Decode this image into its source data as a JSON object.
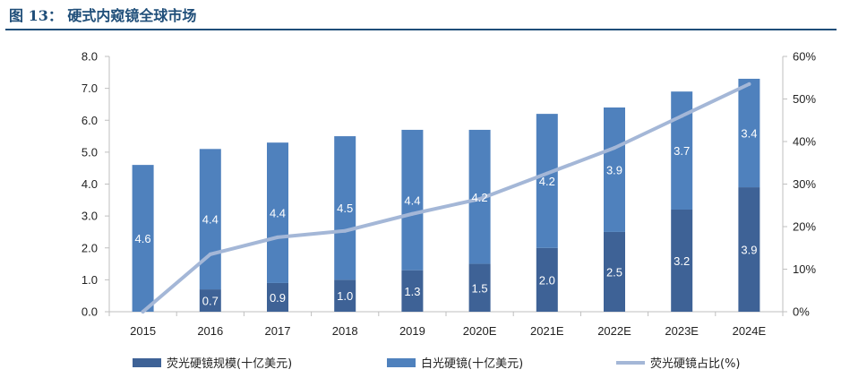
{
  "figure": {
    "title": "图 13：  硬式内窥镜全球市场"
  },
  "colors": {
    "fluorescence": "#3e6296",
    "white_light": "#4f81bd",
    "share_line": "#a4b7d7",
    "title": "#1f4e79"
  },
  "chart_data": {
    "type": "bar",
    "stacked": true,
    "categories": [
      "2015",
      "2016",
      "2017",
      "2018",
      "2019",
      "2020E",
      "2021E",
      "2022E",
      "2023E",
      "2024E"
    ],
    "series": [
      {
        "name": "荧光硬镜规模(十亿美元)",
        "type": "bar",
        "axis": "left",
        "values": [
          0.0,
          0.7,
          0.9,
          1.0,
          1.3,
          1.5,
          2.0,
          2.5,
          3.2,
          3.9
        ],
        "labels": [
          "",
          "0.7",
          "0.9",
          "1.0",
          "1.3",
          "1.5",
          "2.0",
          "2.5",
          "3.2",
          "3.9"
        ]
      },
      {
        "name": "白光硬镜(十亿美元)",
        "type": "bar",
        "axis": "right_of_stack",
        "values": [
          4.6,
          4.4,
          4.4,
          4.5,
          4.4,
          4.2,
          4.2,
          3.9,
          3.7,
          3.4
        ],
        "labels": [
          "4.6",
          "4.4",
          "4.4",
          "4.5",
          "4.4",
          "4.2",
          "4.2",
          "3.9",
          "3.7",
          "3.4"
        ]
      },
      {
        "name": "荧光硬镜占比(%)",
        "type": "line",
        "axis": "right",
        "values": [
          0,
          13.5,
          17.5,
          19,
          23,
          26.5,
          32.5,
          38.5,
          46,
          53.5
        ]
      }
    ],
    "y_left": {
      "min": 0,
      "max": 8,
      "ticks": [
        "0.0",
        "1.0",
        "2.0",
        "3.0",
        "4.0",
        "5.0",
        "6.0",
        "7.0",
        "8.0"
      ]
    },
    "y_right": {
      "min": 0,
      "max": 60,
      "ticks": [
        "0%",
        "10%",
        "20%",
        "30%",
        "40%",
        "50%",
        "60%"
      ]
    },
    "legend_position": "bottom",
    "grid": false
  }
}
